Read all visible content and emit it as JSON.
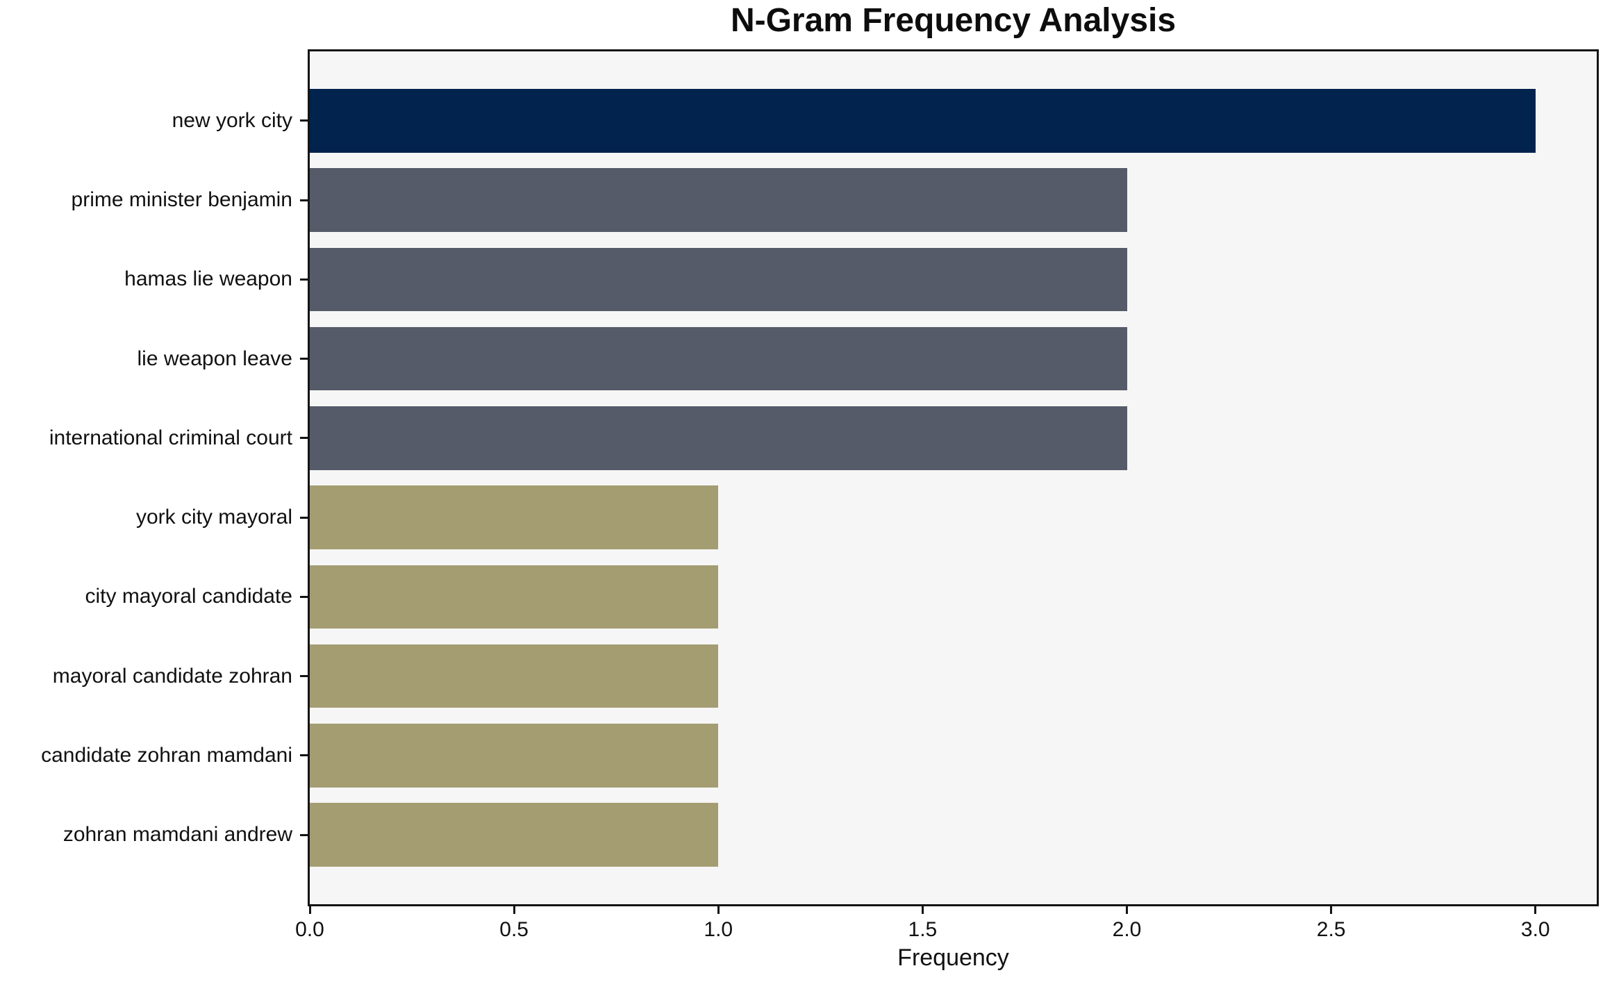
{
  "chart_data": {
    "type": "bar",
    "orientation": "horizontal",
    "title": "N-Gram Frequency Analysis",
    "xlabel": "Frequency",
    "ylabel": "",
    "categories": [
      "new york city",
      "prime minister benjamin",
      "hamas lie weapon",
      "lie weapon leave",
      "international criminal court",
      "york city mayoral",
      "city mayoral candidate",
      "mayoral candidate zohran",
      "candidate zohran mamdani",
      "zohran mamdani andrew"
    ],
    "values": [
      3,
      2,
      2,
      2,
      2,
      1,
      1,
      1,
      1,
      1
    ],
    "bar_colors": [
      "#02234d",
      "#565b69",
      "#565b69",
      "#565b69",
      "#565b69",
      "#a49d72",
      "#a49d72",
      "#a49d72",
      "#a49d72",
      "#a49d72"
    ],
    "color_legend": {
      "frequency_3": "#02234d",
      "frequency_2": "#565b69",
      "frequency_1": "#a49d72"
    },
    "xlim": [
      0,
      3.15
    ],
    "xticks": [
      0.0,
      0.5,
      1.0,
      1.5,
      2.0,
      2.5,
      3.0
    ],
    "xtick_labels": [
      "0.0",
      "0.5",
      "1.0",
      "1.5",
      "2.0",
      "2.5",
      "3.0"
    ],
    "grid": false,
    "legend_position": "none",
    "plot_background": "#f6f6f6",
    "figure_background": "#ffffff",
    "spine_color": "#141414"
  }
}
